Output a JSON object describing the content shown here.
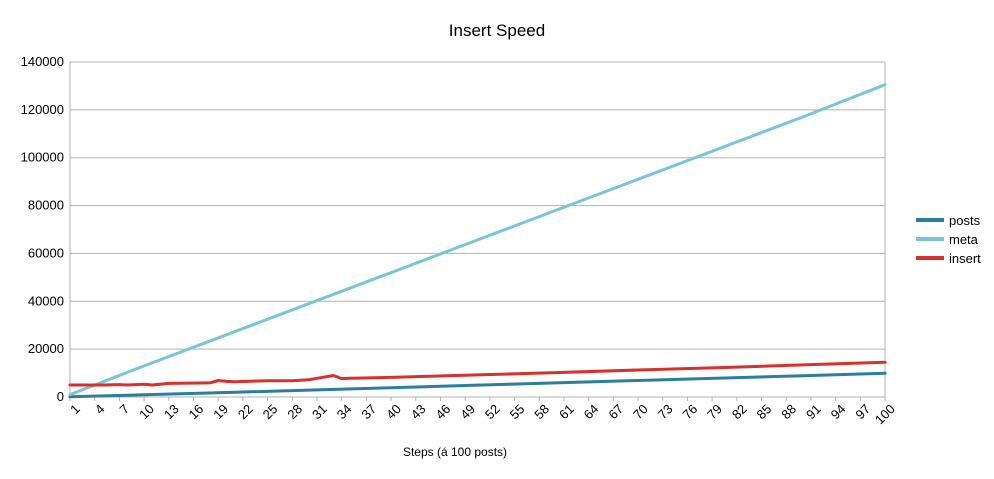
{
  "chart_data": {
    "type": "line",
    "title": "Insert Speed",
    "xlabel": "Steps (á 100 posts)",
    "ylabel": "",
    "ylim": [
      0,
      140000
    ],
    "yticks": [
      "0",
      "20000",
      "40000",
      "60000",
      "80000",
      "100000",
      "120000",
      "140000"
    ],
    "xlim": [
      1,
      100
    ],
    "xticks": [
      "1",
      "4",
      "7",
      "10",
      "13",
      "16",
      "19",
      "22",
      "25",
      "28",
      "31",
      "34",
      "37",
      "40",
      "43",
      "46",
      "49",
      "52",
      "55",
      "58",
      "61",
      "64",
      "67",
      "70",
      "73",
      "76",
      "79",
      "82",
      "85",
      "88",
      "91",
      "94",
      "97",
      "100"
    ],
    "grid": "horizontal",
    "legend_position": "right",
    "series": [
      {
        "name": "posts",
        "color": "#2a7ea0",
        "x": [
          1,
          10,
          20,
          30,
          40,
          50,
          60,
          70,
          80,
          90,
          100
        ],
        "y": [
          100,
          900,
          1900,
          2900,
          3900,
          4900,
          5900,
          6900,
          7900,
          8900,
          9900
        ]
      },
      {
        "name": "meta",
        "color": "#79c4d8",
        "x": [
          1,
          10,
          20,
          30,
          40,
          50,
          60,
          70,
          80,
          90,
          100
        ],
        "y": [
          1000,
          13000,
          26000,
          39000,
          52000,
          65000,
          78000,
          91000,
          104000,
          117000,
          130500
        ]
      },
      {
        "name": "insert",
        "color": "#d9302b",
        "x": [
          1,
          5,
          7,
          8,
          10,
          11,
          13,
          18,
          19,
          20,
          21,
          25,
          28,
          30,
          31,
          33,
          34,
          35,
          40,
          50,
          60,
          70,
          80,
          90,
          100
        ],
        "y": [
          5000,
          5000,
          5200,
          5000,
          5300,
          5000,
          5700,
          5900,
          6900,
          6500,
          6400,
          6800,
          6800,
          7200,
          7800,
          9000,
          7700,
          7800,
          8200,
          9200,
          10200,
          11300,
          12300,
          13400,
          14500
        ]
      }
    ]
  }
}
